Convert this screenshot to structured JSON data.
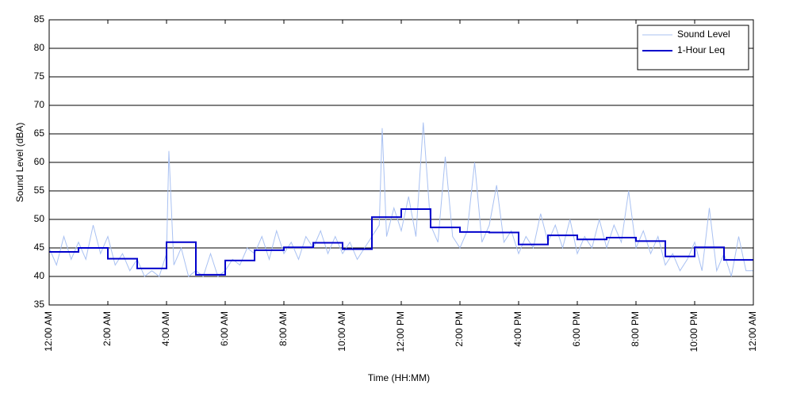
{
  "chart_data": {
    "type": "line",
    "xlabel": "Time (HH:MM)",
    "ylabel": "Sound Level (dBA)",
    "xlim": [
      0,
      24
    ],
    "ylim": [
      35,
      85
    ],
    "xticks": [
      {
        "value": 0,
        "label": "12:00 AM"
      },
      {
        "value": 2,
        "label": "2:00 AM"
      },
      {
        "value": 4,
        "label": "4:00 AM"
      },
      {
        "value": 6,
        "label": "6:00 AM"
      },
      {
        "value": 8,
        "label": "8:00 AM"
      },
      {
        "value": 10,
        "label": "10:00 AM"
      },
      {
        "value": 12,
        "label": "12:00 PM"
      },
      {
        "value": 14,
        "label": "2:00 PM"
      },
      {
        "value": 16,
        "label": "4:00 PM"
      },
      {
        "value": 18,
        "label": "6:00 PM"
      },
      {
        "value": 20,
        "label": "8:00 PM"
      },
      {
        "value": 22,
        "label": "10:00 PM"
      },
      {
        "value": 24,
        "label": "12:00 AM"
      }
    ],
    "yticks": [
      35,
      40,
      45,
      50,
      55,
      60,
      65,
      70,
      75,
      80,
      85
    ],
    "grid": true,
    "legend": "upper right",
    "series": [
      {
        "name": "Sound Level",
        "color": "#a9c1f2",
        "width": 1,
        "x": [
          0,
          0.25,
          0.5,
          0.75,
          1,
          1.25,
          1.5,
          1.75,
          2,
          2.25,
          2.5,
          2.75,
          3,
          3.25,
          3.5,
          3.75,
          4,
          4.08,
          4.25,
          4.5,
          4.75,
          5,
          5.25,
          5.5,
          5.75,
          6,
          6.25,
          6.5,
          6.75,
          7,
          7.25,
          7.5,
          7.75,
          8,
          8.25,
          8.5,
          8.75,
          9,
          9.25,
          9.5,
          9.75,
          10,
          10.25,
          10.5,
          10.75,
          11,
          11.25,
          11.35,
          11.5,
          11.75,
          12,
          12.25,
          12.5,
          12.75,
          13,
          13.25,
          13.5,
          13.75,
          14,
          14.25,
          14.5,
          14.75,
          15,
          15.25,
          15.5,
          15.75,
          16,
          16.25,
          16.5,
          16.75,
          17,
          17.25,
          17.5,
          17.75,
          18,
          18.25,
          18.5,
          18.75,
          19,
          19.25,
          19.5,
          19.75,
          20,
          20.25,
          20.5,
          20.75,
          21,
          21.25,
          21.5,
          21.75,
          22,
          22.25,
          22.5,
          22.75,
          23,
          23.25,
          23.5,
          23.75,
          24
        ],
        "values": [
          45,
          42,
          47,
          43,
          46,
          43,
          49,
          44,
          47,
          42,
          44,
          41,
          43,
          40,
          41,
          40,
          44,
          62,
          42,
          45,
          40,
          41,
          40,
          44,
          40,
          41,
          43,
          42,
          45,
          44,
          47,
          43,
          48,
          44,
          46,
          43,
          47,
          45,
          48,
          44,
          47,
          44,
          46,
          43,
          45,
          47,
          49,
          66,
          47,
          52,
          48,
          54,
          47,
          67,
          49,
          46,
          61,
          47,
          45,
          48,
          60,
          46,
          49,
          56,
          46,
          48,
          44,
          47,
          45,
          51,
          46,
          49,
          45,
          50,
          44,
          47,
          45,
          50,
          45,
          49,
          46,
          55,
          45,
          48,
          44,
          47,
          42,
          44,
          41,
          43,
          46,
          41,
          52,
          41,
          44,
          40,
          47,
          41,
          41
        ]
      },
      {
        "name": "1-Hour Leq",
        "color": "#0000cc",
        "width": 2,
        "step": "post",
        "x": [
          0,
          1,
          2,
          3,
          4,
          5,
          6,
          7,
          8,
          9,
          10,
          11,
          12,
          13,
          14,
          15,
          16,
          17,
          18,
          19,
          20,
          21,
          22,
          23
        ],
        "values": [
          44.3,
          45.0,
          43.1,
          41.4,
          46.0,
          40.3,
          42.8,
          44.6,
          45.1,
          45.9,
          44.8,
          50.4,
          51.8,
          48.6,
          47.8,
          47.7,
          45.6,
          47.2,
          46.5,
          46.8,
          46.2,
          43.5,
          45.1,
          42.9
        ]
      }
    ]
  }
}
